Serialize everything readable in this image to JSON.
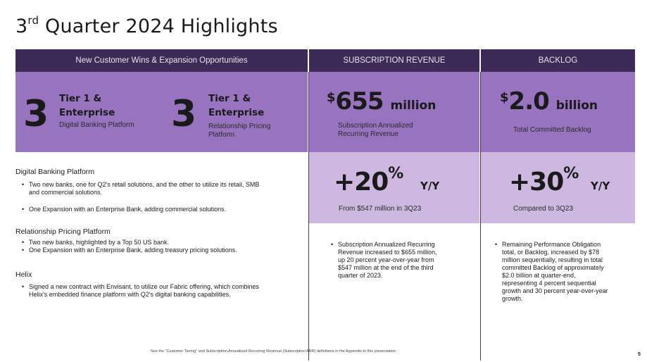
{
  "title": {
    "prefix": "3",
    "sup": "rd",
    "rest": " Quarter 2024 Highlights"
  },
  "headers": {
    "wins": "New Customer Wins & Expansion Opportunities",
    "subscription": "SUBSCRIPTION REVENUE",
    "backlog": "BACKLOG"
  },
  "wins": {
    "digital": {
      "count": "3",
      "tier": "Tier 1 &",
      "enterprise": "Enterprise",
      "platform": "Digital Banking Platform"
    },
    "pricing": {
      "count": "3",
      "tier": "Tier 1 &",
      "enterprise": "Enterprise",
      "platform_line1": "Relationship Pricing",
      "platform_line2": "Platform"
    }
  },
  "subscription": {
    "currency": "$",
    "value": "655",
    "unit": "million",
    "label_line1": "Subscription Annualized",
    "label_line2": "Recurring Revenue",
    "pct": "+20",
    "pct_sign": "%",
    "yy": "Y/Y",
    "from": "From $547 million in 3Q23",
    "bullet": [
      "Subscription Annualized Recurring",
      "Revenue increased to $655 million,",
      "up 20 percent year-over-year from",
      "$547 million at the end of the third",
      "quarter of 2023."
    ]
  },
  "backlog": {
    "currency": "$",
    "value": "2.0",
    "unit": "billion",
    "label": "Total Committed Backlog",
    "pct": "+30",
    "pct_sign": "%",
    "yy": "Y/Y",
    "from": "Compared to 3Q23",
    "bullet": [
      "Remaining Performance Obligation",
      "total, or Backlog, increased by $78",
      "million sequentially, resulting in total",
      "committed Backlog of approximately",
      "$2.0 billion at quarter-end,",
      "representing 4 percent sequential",
      "growth and 30 percent year-over-year",
      "growth."
    ]
  },
  "details": {
    "dbp_title": "Digital Banking Platform",
    "dbp_b1_l1": "Two new banks, one for Q2's retail solutions, and the other to utilize its retail, SMB",
    "dbp_b1_l2": "and commercial solutions.",
    "dbp_b2": "One Expansion with an Enterprise Bank, adding commercial solutions.",
    "rpp_title": "Relationship Pricing Platform",
    "rpp_b1": "Two new banks, highlighted by a Top 50 US bank.",
    "rpp_b2": "One Expansion with an Enterprise Bank, adding treasury pricing solutions.",
    "helix_title": "Helix",
    "helix_b1_l1": "Signed a new contract with Envisant, to utilize our Fabric offering, which combines",
    "helix_b1_l2": "Helix's embedded finance platform with Q2's digital banking capabilities."
  },
  "footer": "See the \"Customer Tiering\" and Subscription Annualized Recurring Revenue (Subscription ARR) definitions in the Appendix to this presentation.",
  "page_number": "5",
  "colors": {
    "header": "#3c2b56",
    "mid_purple": "#9874c0",
    "light_purple": "#cdb8e0"
  }
}
